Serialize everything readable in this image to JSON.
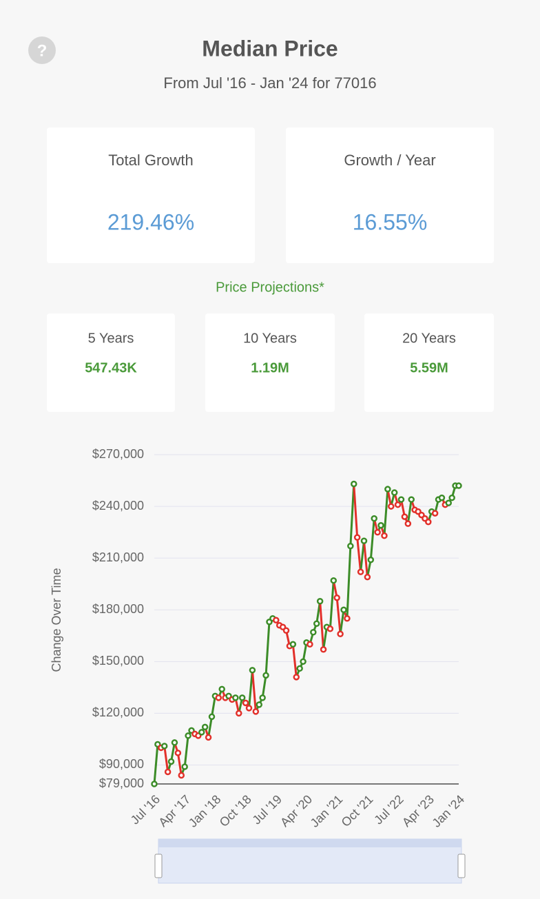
{
  "header": {
    "title": "Median Price",
    "subtitle": "From Jul '16 - Jan '24 for 77016"
  },
  "stats": [
    {
      "label": "Total Growth",
      "value": "219.46%"
    },
    {
      "label": "Growth / Year",
      "value": "16.55%"
    }
  ],
  "projections": {
    "title": "Price Projections*",
    "items": [
      {
        "label": "5 Years",
        "value": "547.43K"
      },
      {
        "label": "10 Years",
        "value": "1.19M"
      },
      {
        "label": "20 Years",
        "value": "5.59M"
      }
    ]
  },
  "chart_data": {
    "type": "line",
    "ylabel": "Change Over Time",
    "categories": [
      "Jul '16",
      null,
      null,
      null,
      null,
      null,
      null,
      null,
      null,
      "Apr '17",
      null,
      null,
      null,
      null,
      null,
      null,
      null,
      null,
      "Jan '18",
      null,
      null,
      null,
      null,
      null,
      null,
      null,
      null,
      "Oct '18",
      null,
      null,
      null,
      null,
      null,
      null,
      null,
      null,
      "Jul '19",
      null,
      null,
      null,
      null,
      null,
      null,
      null,
      null,
      "Apr '20",
      null,
      null,
      null,
      null,
      null,
      null,
      null,
      null,
      "Jan '21",
      null,
      null,
      null,
      null,
      null,
      null,
      null,
      null,
      "Oct '21",
      null,
      null,
      null,
      null,
      null,
      null,
      null,
      null,
      "Jul '22",
      null,
      null,
      null,
      null,
      null,
      null,
      null,
      null,
      "Apr '23",
      null,
      null,
      null,
      null,
      null,
      null,
      null,
      null,
      "Jan '24"
    ],
    "values": [
      79000,
      102000,
      100000,
      101000,
      86000,
      92000,
      103000,
      97000,
      84000,
      89000,
      107000,
      110000,
      108000,
      107000,
      109000,
      112000,
      106000,
      118000,
      130000,
      129000,
      134000,
      129000,
      130000,
      128000,
      129000,
      120000,
      129000,
      126000,
      123000,
      145000,
      121000,
      125000,
      129000,
      142000,
      173000,
      175000,
      174000,
      171000,
      170000,
      168000,
      159000,
      160000,
      141000,
      146000,
      150000,
      161000,
      160000,
      167000,
      172000,
      185000,
      157000,
      170000,
      169000,
      197000,
      187000,
      166000,
      180000,
      175000,
      217000,
      253000,
      222000,
      202000,
      220000,
      199000,
      209000,
      233000,
      225000,
      229000,
      223000,
      250000,
      240000,
      248000,
      241000,
      244000,
      234000,
      230000,
      244000,
      238000,
      237000,
      235000,
      233000,
      231000,
      237000,
      236000,
      244000,
      245000,
      241000,
      242000,
      245000,
      252000,
      252000
    ],
    "up_color": "#3c8c28",
    "down_color": "#e2302a",
    "ylim": [
      79000,
      270000
    ],
    "yticks": [
      {
        "value": 79000,
        "label": "$79,000"
      },
      {
        "value": 90000,
        "label": "$90,000"
      },
      {
        "value": 120000,
        "label": "$120,000"
      },
      {
        "value": 150000,
        "label": "$150,000"
      },
      {
        "value": 180000,
        "label": "$180,000"
      },
      {
        "value": 210000,
        "label": "$210,000"
      },
      {
        "value": 240000,
        "label": "$240,000"
      },
      {
        "value": 270000,
        "label": "$270,000"
      }
    ],
    "grid": true
  }
}
